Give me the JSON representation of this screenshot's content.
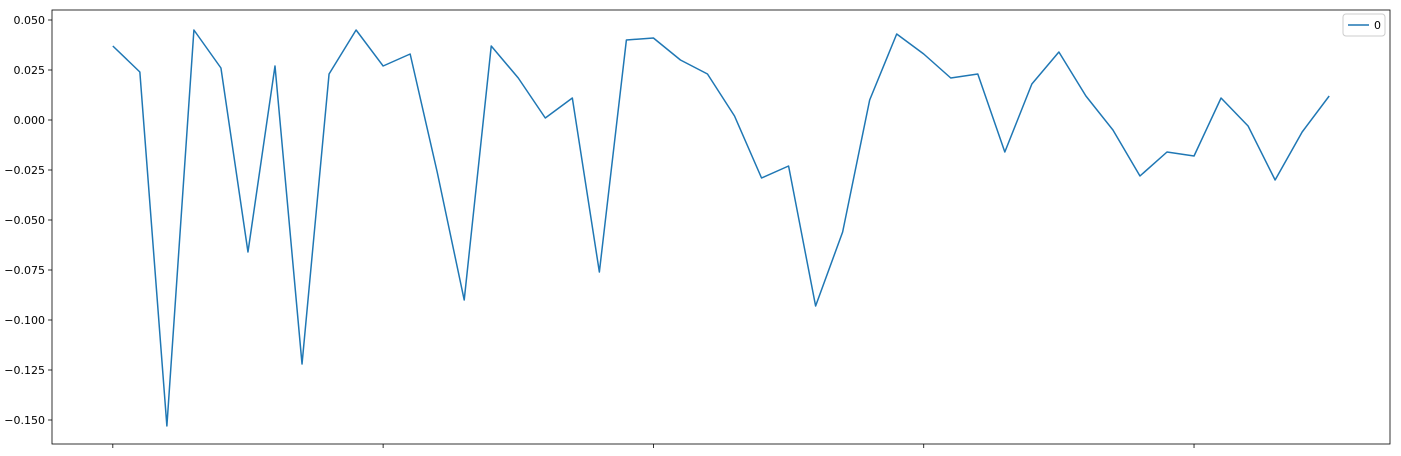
{
  "chart_data": {
    "type": "line",
    "title": "",
    "xlabel": "",
    "ylabel": "",
    "ylim": [
      -0.162,
      0.055
    ],
    "xlim": [
      -2.25,
      47.25
    ],
    "x_ticks": [
      0,
      10,
      20,
      30,
      40
    ],
    "x_tick_labels": [
      "",
      "",
      "",
      "",
      ""
    ],
    "y_ticks": [
      0.05,
      0.025,
      0.0,
      -0.025,
      -0.05,
      -0.075,
      -0.1,
      -0.125,
      -0.15
    ],
    "y_tick_labels": [
      "0.050",
      "0.025",
      "0.000",
      "−0.025",
      "−0.050",
      "−0.075",
      "−0.100",
      "−0.125",
      "−0.150"
    ],
    "grid": false,
    "legend_position": "top-right",
    "series": [
      {
        "name": "0",
        "color": "#1f77b4",
        "x": [
          0,
          1,
          2,
          3,
          4,
          5,
          6,
          7,
          8,
          9,
          10,
          11,
          12,
          13,
          14,
          15,
          16,
          17,
          18,
          19,
          20,
          21,
          22,
          23,
          24,
          25,
          26,
          27,
          28,
          29,
          30,
          31,
          32,
          33,
          34,
          35,
          36,
          37,
          38,
          39,
          40,
          41,
          42,
          43,
          44,
          45
        ],
        "values": [
          0.037,
          0.024,
          -0.153,
          0.045,
          0.026,
          -0.066,
          0.027,
          -0.122,
          0.023,
          0.045,
          0.027,
          0.033,
          -0.026,
          -0.09,
          0.037,
          0.021,
          0.001,
          0.011,
          -0.076,
          0.04,
          0.041,
          0.03,
          0.023,
          0.002,
          -0.029,
          -0.023,
          -0.093,
          -0.056,
          0.01,
          0.043,
          0.033,
          0.021,
          0.023,
          -0.016,
          0.018,
          0.034,
          0.012,
          -0.005,
          -0.028,
          -0.016,
          -0.018,
          0.011,
          -0.003,
          -0.03,
          -0.006,
          0.012
        ]
      }
    ]
  }
}
